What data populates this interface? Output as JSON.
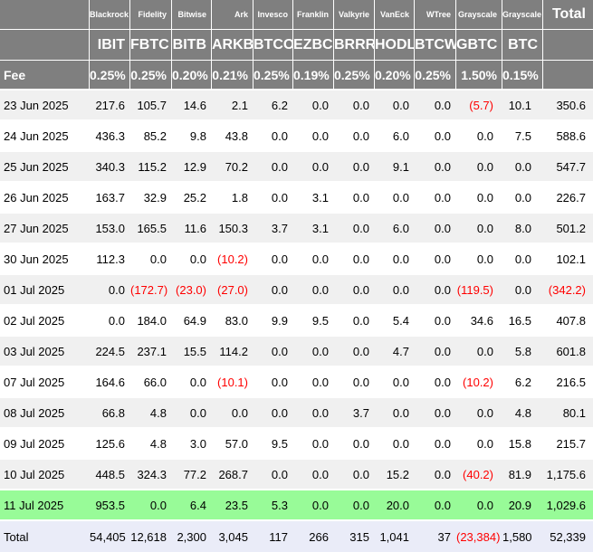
{
  "chart_data": {
    "type": "table",
    "columns": [
      {
        "issuer": "Blackrock",
        "ticker": "IBIT",
        "fee": "0.25%"
      },
      {
        "issuer": "Fidelity",
        "ticker": "FBTC",
        "fee": "0.25%"
      },
      {
        "issuer": "Bitwise",
        "ticker": "BITB",
        "fee": "0.20%"
      },
      {
        "issuer": "Ark",
        "ticker": "ARKB",
        "fee": "0.21%"
      },
      {
        "issuer": "Invesco",
        "ticker": "BTCO",
        "fee": "0.25%"
      },
      {
        "issuer": "Franklin",
        "ticker": "EZBC",
        "fee": "0.19%"
      },
      {
        "issuer": "Valkyrie",
        "ticker": "BRRR",
        "fee": "0.25%"
      },
      {
        "issuer": "VanEck",
        "ticker": "HODL",
        "fee": "0.20%"
      },
      {
        "issuer": "WTree",
        "ticker": "BTCW",
        "fee": "0.25%"
      },
      {
        "issuer": "Grayscale",
        "ticker": "GBTC",
        "fee": "1.50%"
      },
      {
        "issuer": "Grayscale",
        "ticker": "BTC",
        "fee": "0.15%"
      }
    ],
    "fee_label": "Fee",
    "total_header": "Total",
    "rows": [
      {
        "date": "23 Jun 2025",
        "values": [
          "217.6",
          "105.7",
          "14.6",
          "2.1",
          "6.2",
          "0.0",
          "0.0",
          "0.0",
          "0.0",
          "(5.7)",
          "10.1"
        ],
        "total": "350.6"
      },
      {
        "date": "24 Jun 2025",
        "values": [
          "436.3",
          "85.2",
          "9.8",
          "43.8",
          "0.0",
          "0.0",
          "0.0",
          "6.0",
          "0.0",
          "0.0",
          "7.5"
        ],
        "total": "588.6"
      },
      {
        "date": "25 Jun 2025",
        "values": [
          "340.3",
          "115.2",
          "12.9",
          "70.2",
          "0.0",
          "0.0",
          "0.0",
          "9.1",
          "0.0",
          "0.0",
          "0.0"
        ],
        "total": "547.7"
      },
      {
        "date": "26 Jun 2025",
        "values": [
          "163.7",
          "32.9",
          "25.2",
          "1.8",
          "0.0",
          "3.1",
          "0.0",
          "0.0",
          "0.0",
          "0.0",
          "0.0"
        ],
        "total": "226.7"
      },
      {
        "date": "27 Jun 2025",
        "values": [
          "153.0",
          "165.5",
          "11.6",
          "150.3",
          "3.7",
          "3.1",
          "0.0",
          "6.0",
          "0.0",
          "0.0",
          "8.0"
        ],
        "total": "501.2"
      },
      {
        "date": "30 Jun 2025",
        "values": [
          "112.3",
          "0.0",
          "0.0",
          "(10.2)",
          "0.0",
          "0.0",
          "0.0",
          "0.0",
          "0.0",
          "0.0",
          "0.0"
        ],
        "total": "102.1"
      },
      {
        "date": "01 Jul 2025",
        "values": [
          "0.0",
          "(172.7)",
          "(23.0)",
          "(27.0)",
          "0.0",
          "0.0",
          "0.0",
          "0.0",
          "0.0",
          "(119.5)",
          "0.0"
        ],
        "total": "(342.2)"
      },
      {
        "date": "02 Jul 2025",
        "values": [
          "0.0",
          "184.0",
          "64.9",
          "83.0",
          "9.9",
          "9.5",
          "0.0",
          "5.4",
          "0.0",
          "34.6",
          "16.5"
        ],
        "total": "407.8"
      },
      {
        "date": "03 Jul 2025",
        "values": [
          "224.5",
          "237.1",
          "15.5",
          "114.2",
          "0.0",
          "0.0",
          "0.0",
          "4.7",
          "0.0",
          "0.0",
          "5.8"
        ],
        "total": "601.8"
      },
      {
        "date": "07 Jul 2025",
        "values": [
          "164.6",
          "66.0",
          "0.0",
          "(10.1)",
          "0.0",
          "0.0",
          "0.0",
          "0.0",
          "0.0",
          "(10.2)",
          "6.2"
        ],
        "total": "216.5"
      },
      {
        "date": "08 Jul 2025",
        "values": [
          "66.8",
          "4.8",
          "0.0",
          "0.0",
          "0.0",
          "0.0",
          "3.7",
          "0.0",
          "0.0",
          "0.0",
          "4.8"
        ],
        "total": "80.1"
      },
      {
        "date": "09 Jul 2025",
        "values": [
          "125.6",
          "4.8",
          "3.0",
          "57.0",
          "9.5",
          "0.0",
          "0.0",
          "0.0",
          "0.0",
          "0.0",
          "15.8"
        ],
        "total": "215.7"
      },
      {
        "date": "10 Jul 2025",
        "values": [
          "448.5",
          "324.3",
          "77.2",
          "268.7",
          "0.0",
          "0.0",
          "0.0",
          "15.2",
          "0.0",
          "(40.2)",
          "81.9"
        ],
        "total": "1,175.6"
      },
      {
        "date": "11 Jul 2025",
        "values": [
          "953.5",
          "0.0",
          "6.4",
          "23.5",
          "5.3",
          "0.0",
          "0.0",
          "20.0",
          "0.0",
          "0.0",
          "20.9"
        ],
        "total": "1,029.6",
        "highlight": "green"
      }
    ],
    "total_row": {
      "label": "Total",
      "values": [
        "54,405",
        "12,618",
        "2,300",
        "3,045",
        "117",
        "266",
        "315",
        "1,041",
        "37",
        "(23,384)",
        "1,580"
      ],
      "total": "52,339"
    }
  },
  "colors": {
    "header_bg": "#7f7f7f",
    "header_text": "#ffffff",
    "stripe_bg": "#f0f0f0",
    "row_bg": "#ffffff",
    "green_row_bg": "#98fb98",
    "total_row_bg": "#eaecf8",
    "negative": "#ff0000",
    "text": "#000000"
  }
}
